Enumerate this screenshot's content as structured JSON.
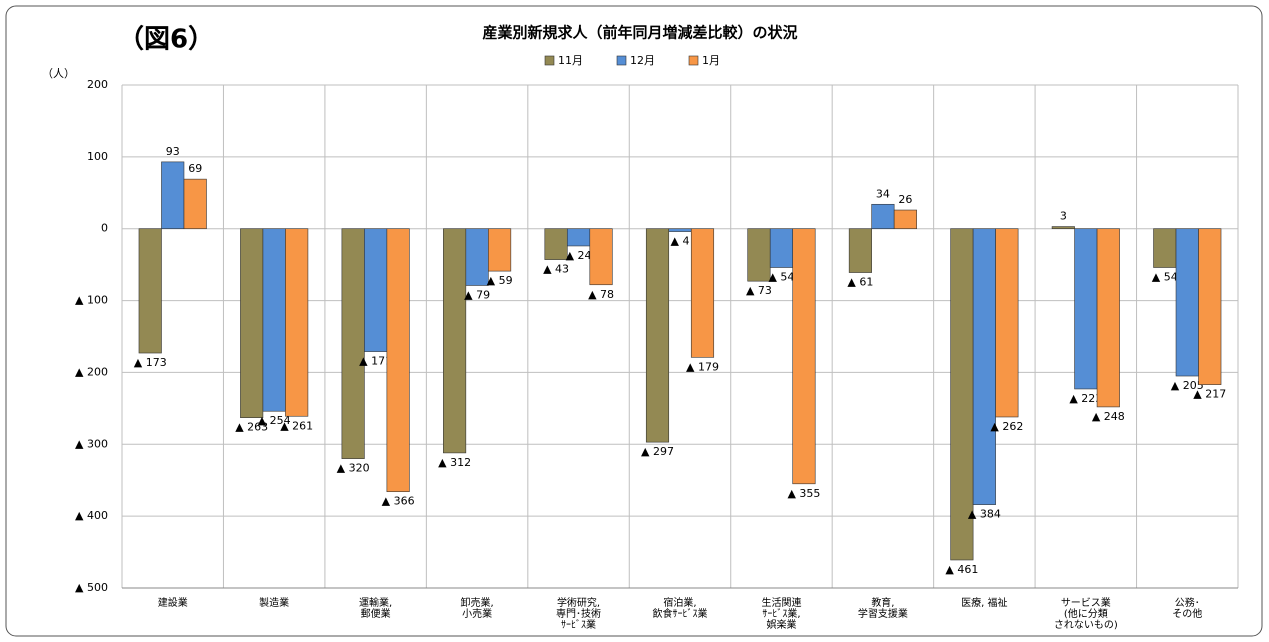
{
  "chart_data": {
    "type": "bar",
    "figure_label": "（図6）",
    "title": "産業別新規求人（前年同月増減差比較）の状況",
    "y_unit": "（人）",
    "categories": [
      "建設業",
      "製造業",
      "運輸業,\n郵便業",
      "卸売業,\n小売業",
      "学術研究,\n専門･技術\nｻｰﾋﾞｽ業",
      "宿泊業,\n飲食ｻｰﾋﾞｽ業",
      "生活関連\nｻｰﾋﾞｽ業,\n娯楽業",
      "教育,\n学習支援業",
      "医療, 福祉",
      "サービス業\n(他に分類\nされないもの)",
      "公務･\nその他"
    ],
    "series": [
      {
        "name": "11月",
        "color": "#938953",
        "values": [
          -173,
          -263,
          -320,
          -312,
          -43,
          -297,
          -73,
          -61,
          -461,
          3,
          -54
        ],
        "value_labels": [
          "▲ 173",
          "▲ 263",
          "▲ 320",
          "▲ 312",
          "▲ 43",
          "▲ 297",
          "▲ 73",
          "▲ 61",
          "▲ 461",
          "3",
          "▲ 54"
        ]
      },
      {
        "name": "12月",
        "color": "#558ed5",
        "values": [
          93,
          -254,
          -171,
          -79,
          -24,
          -4,
          -54,
          34,
          -384,
          -223,
          -205
        ],
        "value_labels": [
          "93",
          "▲ 254",
          "▲ 171",
          "▲ 79",
          "▲ 24",
          "▲ 4",
          "▲ 54",
          "34",
          "▲ 384",
          "▲ 223",
          "▲ 205"
        ]
      },
      {
        "name": "1月",
        "color": "#f79646",
        "values": [
          69,
          -261,
          -366,
          -59,
          -78,
          -179,
          -355,
          26,
          -262,
          -248,
          -217
        ],
        "value_labels": [
          "69",
          "▲ 261",
          "▲ 366",
          "▲ 59",
          "▲ 78",
          "▲ 179",
          "▲ 355",
          "26",
          "▲ 262",
          "▲ 248",
          "▲ 217"
        ]
      }
    ],
    "ylim": [
      -500,
      200
    ],
    "yticks": [
      200,
      100,
      0,
      {
        "value": -100,
        "label": "▲ 100"
      },
      {
        "value": -200,
        "label": "▲ 200"
      },
      {
        "value": -300,
        "label": "▲ 300"
      },
      {
        "value": -400,
        "label": "▲ 400"
      },
      {
        "value": -500,
        "label": "▲ 500"
      }
    ],
    "grid": true
  }
}
